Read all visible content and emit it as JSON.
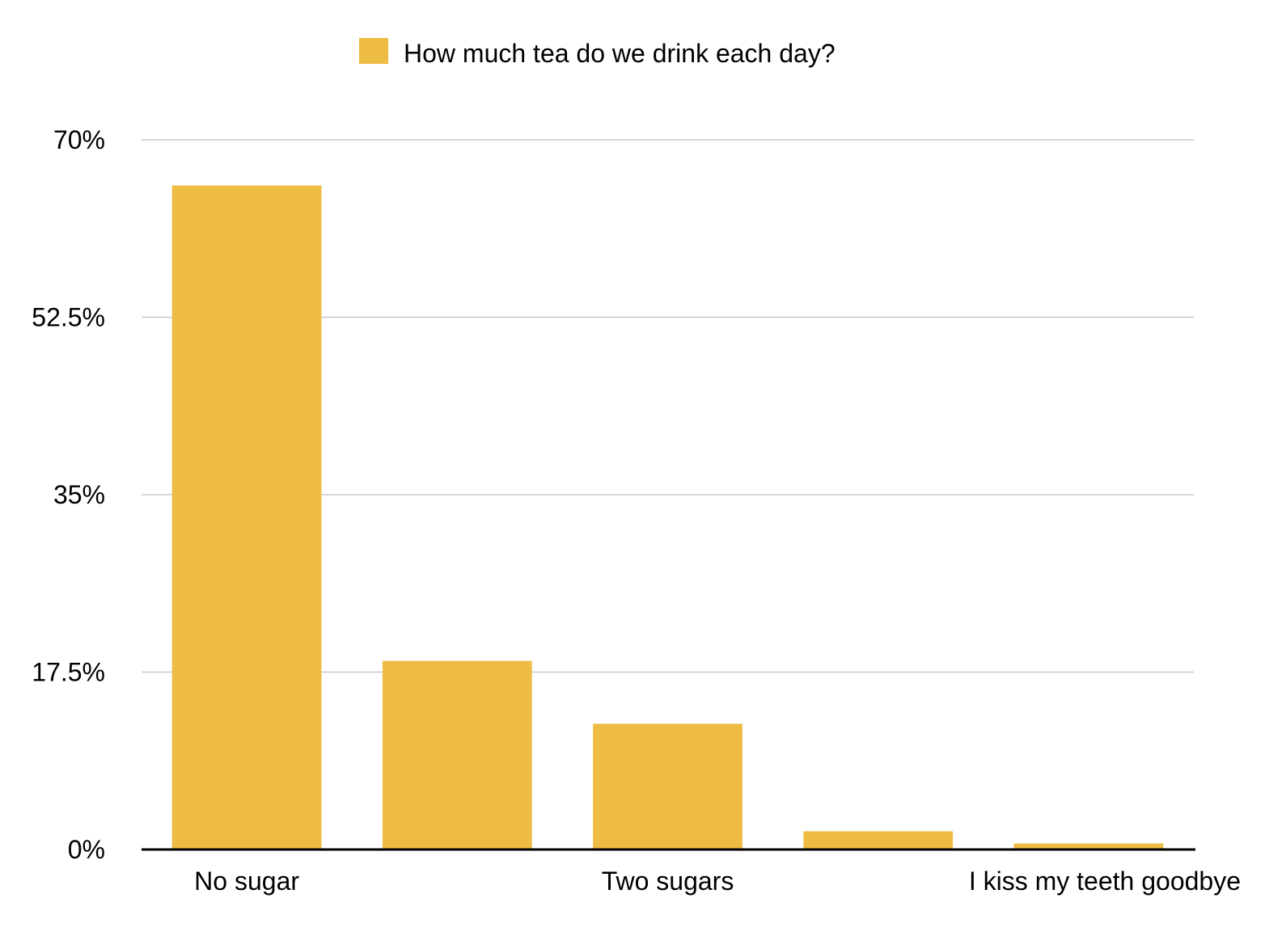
{
  "chart_data": {
    "type": "bar",
    "categories": [
      "No sugar",
      "",
      "Two sugars",
      "",
      "I kiss my teeth goodbye"
    ],
    "series": [
      {
        "name": "How much tea do we drink each day?",
        "values": [
          65.5,
          18.6,
          12.4,
          1.8,
          0.6
        ],
        "color": "#EEBB43"
      }
    ],
    "y_ticks": [
      "0%",
      "17.5%",
      "35%",
      "52.5%",
      "70%"
    ],
    "y_tick_values": [
      0,
      17.5,
      35,
      52.5,
      70
    ],
    "ylim": [
      0,
      70
    ],
    "y_unit": "%",
    "legend_position": "top-center",
    "grid": true,
    "gridline_color": "#C8C8C8",
    "baseline_color": "#000000"
  }
}
